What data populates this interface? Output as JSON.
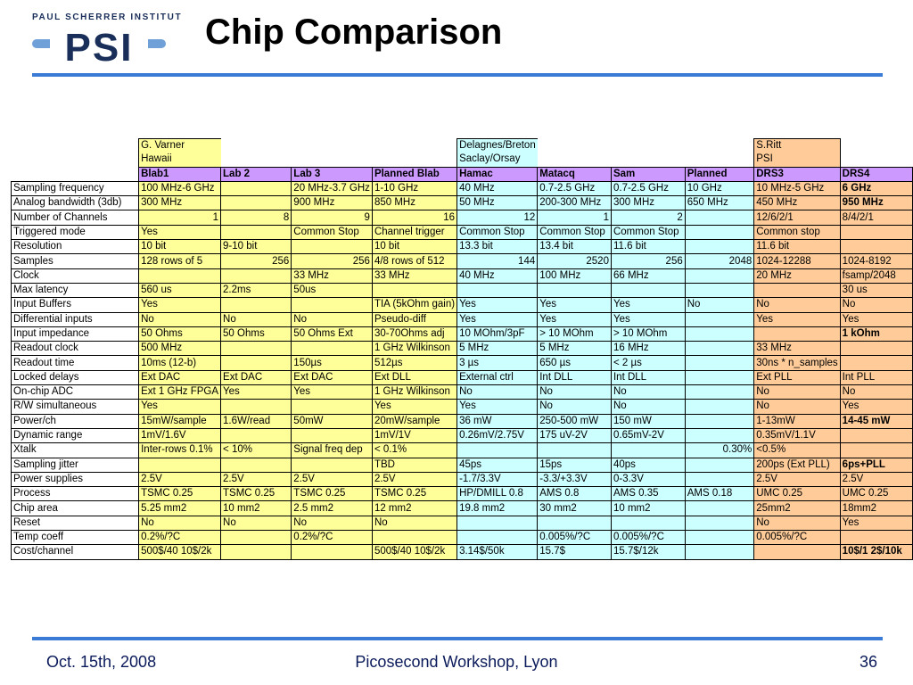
{
  "header": {
    "logo_text": "PAUL SCHERRER INSTITUT",
    "logo_mark": "PSI",
    "title": "Chip Comparison"
  },
  "footer": {
    "date": "Oct. 15th, 2008",
    "event": "Picosecond Workshop, Lyon",
    "page": "36"
  },
  "groups": {
    "varner": [
      "G. Varner",
      "Hawaii"
    ],
    "delagnes": [
      "Delagnes/Breton",
      "Saclay/Orsay"
    ],
    "ritt": [
      "S.Ritt",
      "PSI"
    ]
  },
  "chips": [
    "Blab1",
    "Lab 2",
    "Lab 3",
    "Planned Blab",
    "Hamac",
    "Matacq",
    "Sam",
    "Planned",
    "DRS3",
    "DRS4"
  ],
  "rows": [
    {
      "label": "Sampling frequency",
      "cells": [
        "100 MHz-6 GHz",
        "",
        "20 MHz-3.7 GHz",
        "1-10 GHz",
        "40 MHz",
        "0.7-2.5 GHz",
        "0.7-2.5 GHz",
        "10 GHz",
        "10 MHz-5 GHz",
        "6 GHz"
      ]
    },
    {
      "label": "Analog bandwidth (3db)",
      "cells": [
        "300 MHz",
        "",
        "900 MHz",
        "850 MHz",
        "50 MHz",
        "200-300 MHz",
        "300 MHz",
        "650 MHz",
        "450 MHz",
        "950 MHz"
      ]
    },
    {
      "label": "Number of Channels",
      "cells": [
        "1",
        "8",
        "9",
        "16",
        "12",
        "1",
        "2",
        "",
        "12/6/2/1",
        "8/4/2/1"
      ]
    },
    {
      "label": "Triggered mode",
      "cells": [
        "Yes",
        "",
        "Common Stop",
        "Channel trigger",
        "Common Stop",
        "Common Stop",
        "Common Stop",
        "",
        "Common stop",
        ""
      ]
    },
    {
      "label": "Resolution",
      "cells": [
        "10 bit",
        "9-10 bit",
        "",
        "10 bit",
        "13.3 bit",
        "13.4 bit",
        "11.6 bit",
        "",
        "11.6 bit",
        ""
      ]
    },
    {
      "label": "Samples",
      "cells": [
        "128 rows of 5",
        "256",
        "256",
        "4/8 rows of 512",
        "144",
        "2520",
        "256",
        "2048",
        "1024-12288",
        "1024-8192"
      ]
    },
    {
      "label": "Clock",
      "cells": [
        "",
        "",
        "33 MHz",
        "33 MHz",
        "40 MHz",
        "100 MHz",
        "66 MHz",
        "",
        "20 MHz",
        "fsamp/2048"
      ]
    },
    {
      "label": "Max latency",
      "cells": [
        "560 us",
        "2.2ms",
        "50us",
        "",
        "",
        "",
        "",
        "",
        "",
        "30 us"
      ]
    },
    {
      "label": "Input Buffers",
      "cells": [
        "Yes",
        "",
        "",
        "TIA (5kOhm gain)",
        "Yes",
        "Yes",
        "Yes",
        "No",
        "No",
        "No"
      ]
    },
    {
      "label": "Differential inputs",
      "cells": [
        "No",
        "No",
        "No",
        "Pseudo-diff",
        "Yes",
        "Yes",
        "Yes",
        "",
        "Yes",
        "Yes"
      ]
    },
    {
      "label": "Input impedance",
      "cells": [
        "50 Ohms",
        "50 Ohms",
        "50 Ohms Ext",
        "30-70Ohms adj",
        "10 MOhm/3pF",
        "> 10 MOhm",
        "> 10 MOhm",
        "",
        "",
        "1 kOhm"
      ]
    },
    {
      "label": "Readout clock",
      "cells": [
        "500 MHz",
        "",
        "",
        "1 GHz Wilkinson",
        "5 MHz",
        "5 MHz",
        "16 MHz",
        "",
        "33 MHz",
        ""
      ]
    },
    {
      "label": "Readout time",
      "cells": [
        "10ms (12-b)",
        "",
        "150µs",
        "512µs",
        "3 µs",
        "650 µs",
        "< 2 µs",
        "",
        "30ns * n_samples",
        ""
      ]
    },
    {
      "label": "Locked delays",
      "cells": [
        "Ext DAC",
        "Ext DAC",
        "Ext DAC",
        "Ext DLL",
        "External ctrl",
        "Int DLL",
        "Int DLL",
        "",
        "Ext PLL",
        "Int PLL"
      ]
    },
    {
      "label": "On-chip ADC",
      "cells": [
        "Ext 1 GHz FPGA",
        "Yes",
        "Yes",
        " 1 GHz Wilkinson",
        "No",
        "No",
        "No",
        "",
        "No",
        "No"
      ]
    },
    {
      "label": "R/W simultaneous",
      "cells": [
        "Yes",
        "",
        "",
        "Yes",
        "Yes",
        "No",
        "No",
        "",
        "No",
        "Yes"
      ]
    },
    {
      "label": "Power/ch",
      "cells": [
        "15mW/sample",
        "1.6W/read",
        "50mW",
        "20mW/sample",
        "36 mW",
        "250-500 mW",
        "150 mW",
        "",
        "1-13mW",
        "14-45 mW"
      ]
    },
    {
      "label": "Dynamic range",
      "cells": [
        "1mV/1.6V",
        "",
        "",
        "1mV/1V",
        "0.26mV/2.75V",
        "175 uV-2V",
        "0.65mV-2V",
        "",
        "0.35mV/1.1V",
        ""
      ]
    },
    {
      "label": "Xtalk",
      "cells": [
        "Inter-rows  0.1%",
        "< 10%",
        "Signal freq dep",
        "< 0.1%",
        "",
        "",
        "",
        "0.30%",
        "<0.5%",
        ""
      ]
    },
    {
      "label": "Sampling jitter",
      "cells": [
        "",
        "",
        "",
        "TBD",
        "45ps",
        "15ps",
        "40ps",
        "",
        "200ps (Ext PLL)",
        "6ps+PLL"
      ]
    },
    {
      "label": "Power supplies",
      "cells": [
        "2.5V",
        " 2.5V",
        " 2.5V",
        "2.5V",
        " -1.7/3.3V",
        " -3.3/+3.3V",
        "0-3.3V",
        "",
        "2.5V",
        "2.5V"
      ]
    },
    {
      "label": "Process",
      "cells": [
        "TSMC 0.25",
        "TSMC 0.25",
        "TSMC 0.25",
        "TSMC 0.25",
        "HP/DMILL 0.8",
        "AMS 0.8",
        "AMS 0.35",
        "AMS 0.18",
        "UMC 0.25",
        "UMC 0.25"
      ]
    },
    {
      "label": "Chip area",
      "cells": [
        "5.25 mm2",
        "10 mm2",
        "2.5 mm2",
        "12 mm2",
        "19.8 mm2",
        "30 mm2",
        "10 mm2",
        "",
        "25mm2",
        "18mm2"
      ]
    },
    {
      "label": "Reset",
      "cells": [
        "No",
        "No",
        "No",
        "No",
        "",
        "",
        "",
        "",
        "No",
        "Yes"
      ]
    },
    {
      "label": "Temp coeff",
      "cells": [
        "0.2%/?C",
        "",
        "0.2%/?C",
        "",
        "",
        " 0.005%/?C",
        " 0.005%/?C",
        "",
        " 0.005%/?C",
        ""
      ]
    },
    {
      "label": "Cost/channel",
      "cells": [
        "500$/40  10$/2k",
        "",
        "",
        "500$/40  10$/2k",
        "3.14$/50k",
        " 15.7$",
        "15.7$/12k",
        "",
        "",
        "10$/1 2$/10k"
      ]
    }
  ]
}
